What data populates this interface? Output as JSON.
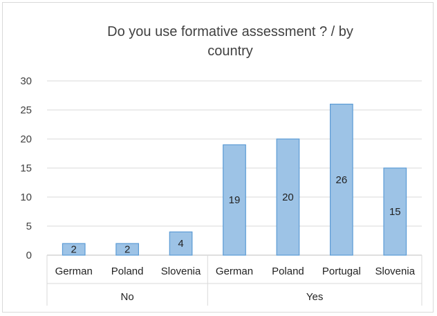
{
  "chart_data": {
    "type": "bar",
    "title_lines": [
      "Do you use formative assessment ? / by",
      "country"
    ],
    "groups": [
      {
        "name": "No",
        "categories": [
          "German",
          "Poland",
          "Slovenia"
        ]
      },
      {
        "name": "Yes",
        "categories": [
          "German",
          "Poland",
          "Portugal",
          "Slovenia"
        ]
      }
    ],
    "values": [
      2,
      2,
      4,
      19,
      20,
      26,
      15
    ],
    "ylim": [
      0,
      30
    ],
    "yticks": [
      0,
      5,
      10,
      15,
      20,
      25,
      30
    ],
    "grid": true,
    "legend": "none",
    "colors": {
      "bar_fill": "#9dc3e6",
      "bar_stroke": "#5b9bd5",
      "grid": "#d9d9d9",
      "axis": "#bfbfbf"
    }
  }
}
